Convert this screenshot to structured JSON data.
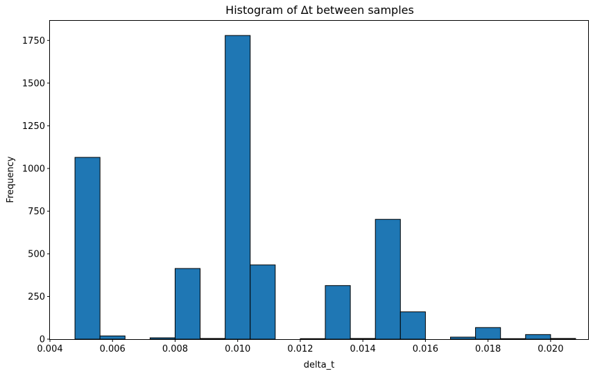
{
  "chart_data": {
    "type": "bar",
    "title": "Histogram of Δt between samples",
    "xlabel": "delta_t",
    "ylabel": "Frequency",
    "xlim": [
      0.004,
      0.0212
    ],
    "ylim": [
      0,
      1865
    ],
    "grid": false,
    "bar_color": "#1f77b4",
    "edge_color": "#000000",
    "bins": [
      {
        "start": 0.0048,
        "end": 0.0056,
        "value": 1065
      },
      {
        "start": 0.0056,
        "end": 0.0064,
        "value": 19
      },
      {
        "start": 0.0064,
        "end": 0.0072,
        "value": 0
      },
      {
        "start": 0.0072,
        "end": 0.008,
        "value": 8
      },
      {
        "start": 0.008,
        "end": 0.0088,
        "value": 414
      },
      {
        "start": 0.0088,
        "end": 0.0096,
        "value": 4
      },
      {
        "start": 0.0096,
        "end": 0.0104,
        "value": 1779
      },
      {
        "start": 0.0104,
        "end": 0.0112,
        "value": 435
      },
      {
        "start": 0.0112,
        "end": 0.012,
        "value": 0
      },
      {
        "start": 0.012,
        "end": 0.0128,
        "value": 3
      },
      {
        "start": 0.0128,
        "end": 0.0136,
        "value": 314
      },
      {
        "start": 0.0136,
        "end": 0.0144,
        "value": 4
      },
      {
        "start": 0.0144,
        "end": 0.0152,
        "value": 702
      },
      {
        "start": 0.0152,
        "end": 0.016,
        "value": 160
      },
      {
        "start": 0.016,
        "end": 0.0168,
        "value": 0
      },
      {
        "start": 0.0168,
        "end": 0.0176,
        "value": 12
      },
      {
        "start": 0.0176,
        "end": 0.0184,
        "value": 68
      },
      {
        "start": 0.0184,
        "end": 0.0192,
        "value": 3
      },
      {
        "start": 0.0192,
        "end": 0.02,
        "value": 27
      },
      {
        "start": 0.02,
        "end": 0.0208,
        "value": 4
      }
    ],
    "x_ticks": [
      {
        "value": 0.004,
        "label": "0.004"
      },
      {
        "value": 0.006,
        "label": "0.006"
      },
      {
        "value": 0.008,
        "label": "0.008"
      },
      {
        "value": 0.01,
        "label": "0.010"
      },
      {
        "value": 0.012,
        "label": "0.012"
      },
      {
        "value": 0.014,
        "label": "0.014"
      },
      {
        "value": 0.016,
        "label": "0.016"
      },
      {
        "value": 0.018,
        "label": "0.018"
      },
      {
        "value": 0.02,
        "label": "0.020"
      }
    ],
    "y_ticks": [
      {
        "value": 0,
        "label": "0"
      },
      {
        "value": 250,
        "label": "250"
      },
      {
        "value": 500,
        "label": "500"
      },
      {
        "value": 750,
        "label": "750"
      },
      {
        "value": 1000,
        "label": "1000"
      },
      {
        "value": 1250,
        "label": "1250"
      },
      {
        "value": 1500,
        "label": "1500"
      },
      {
        "value": 1750,
        "label": "1750"
      }
    ]
  }
}
